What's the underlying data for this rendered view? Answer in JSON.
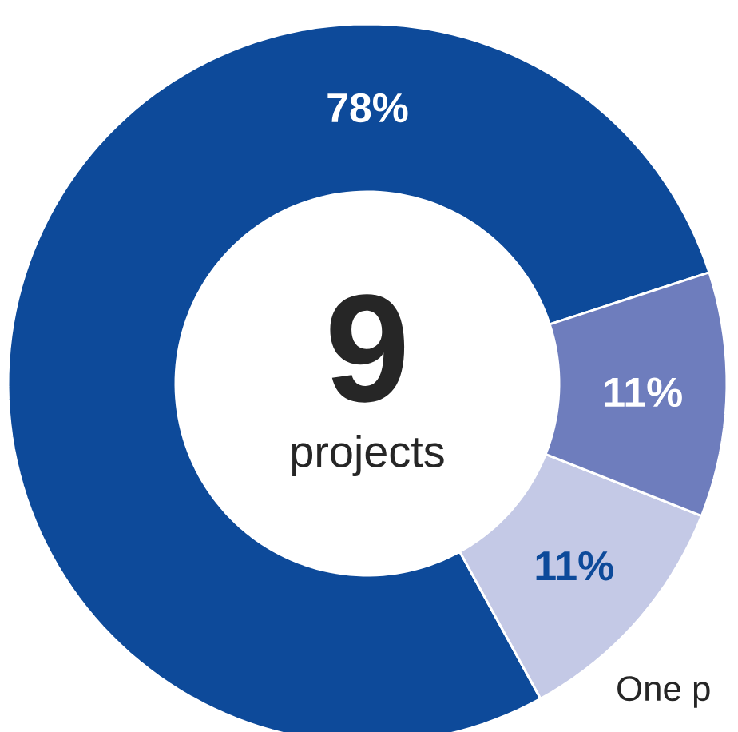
{
  "chart_data": {
    "type": "donut",
    "categories": [
      null,
      null,
      null
    ],
    "values": [
      78,
      11,
      11
    ],
    "colors": [
      "#0d4a9a",
      "#c4c9e6",
      "#6e7dbd"
    ],
    "value_labels": [
      "78%",
      "11%",
      "11%"
    ],
    "annotations": [
      "9",
      "projects",
      "One p"
    ]
  }
}
